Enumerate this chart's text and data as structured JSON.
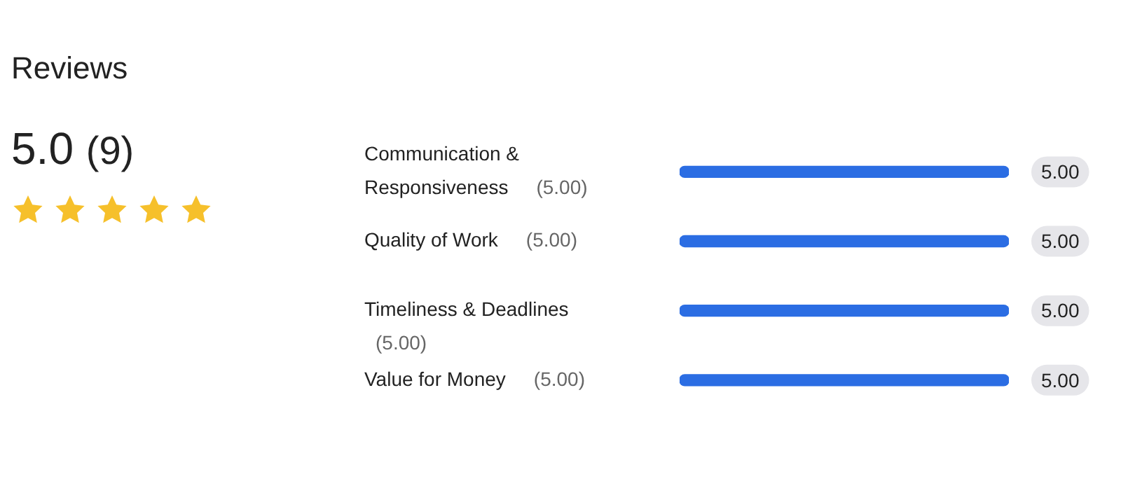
{
  "chart_data": {
    "type": "bar",
    "orientation": "horizontal",
    "title": "Reviews",
    "subtitle": "5.0 (9)",
    "categories": [
      "Communication & Responsiveness",
      "Quality of Work",
      "Timeliness & Deadlines",
      "Value for Money"
    ],
    "values": [
      5,
      5,
      5,
      5
    ],
    "value_labels": [
      "5.00",
      "5.00",
      "5.00",
      "5.00"
    ],
    "color": "#2b6de3",
    "grid": false,
    "legend": false,
    "annotations": [
      "(5.00)",
      "(5.00)",
      "(5.00)",
      "(5.00)"
    ]
  }
}
